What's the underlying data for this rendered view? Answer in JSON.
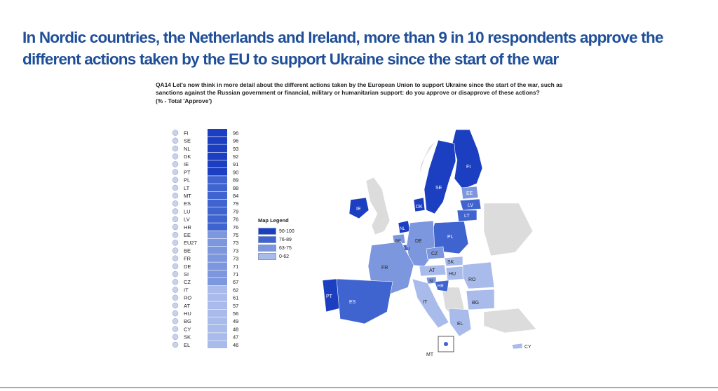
{
  "headline": "In Nordic countries, the Netherlands and Ireland, more than 9 in 10 respondents approve the different actions taken by the EU to support Ukraine since the start of the war",
  "question": "QA14 Let's now think in more detail about the different actions taken by the European Union to support Ukraine since the start of the war, such as sanctions against the Russian government or financial, military or humanitarian support: do you approve or disapprove of these actions?",
  "unit_note": "(% - Total 'Approve')",
  "legend": {
    "title": "Map Legend",
    "items": [
      {
        "label": "90-100",
        "color": "#1c3fc1"
      },
      {
        "label": "76-89",
        "color": "#3f63cf"
      },
      {
        "label": "63-75",
        "color": "#7d97de"
      },
      {
        "label": "0-62",
        "color": "#a9bbeb"
      }
    ]
  },
  "map_labels": [
    "FI",
    "SE",
    "EE",
    "LV",
    "LT",
    "IE",
    "DK",
    "PL",
    "NL",
    "BE",
    "LU",
    "DE",
    "CZ",
    "SK",
    "FR",
    "AT",
    "HU",
    "SI",
    "HR",
    "RO",
    "PT",
    "ES",
    "IT",
    "BG",
    "EL",
    "MT",
    "CY"
  ],
  "chart_data": {
    "type": "bar",
    "orientation": "horizontal",
    "categories": [
      "FI",
      "SE",
      "NL",
      "DK",
      "IE",
      "PT",
      "PL",
      "LT",
      "MT",
      "ES",
      "LU",
      "LV",
      "HR",
      "EE",
      "EU27",
      "BE",
      "FR",
      "DE",
      "SI",
      "CZ",
      "IT",
      "RO",
      "AT",
      "HU",
      "BG",
      "CY",
      "SK",
      "EL"
    ],
    "values": [
      96,
      96,
      93,
      92,
      91,
      90,
      89,
      88,
      84,
      79,
      79,
      76,
      76,
      75,
      73,
      73,
      73,
      71,
      71,
      67,
      62,
      61,
      57,
      56,
      49,
      48,
      47,
      46
    ],
    "color_bands": [
      {
        "min": 90,
        "max": 100,
        "color": "#1c3fc1"
      },
      {
        "min": 76,
        "max": 89,
        "color": "#3f63cf"
      },
      {
        "min": 63,
        "max": 75,
        "color": "#7d97de"
      },
      {
        "min": 0,
        "max": 62,
        "color": "#a9bbeb"
      }
    ]
  }
}
